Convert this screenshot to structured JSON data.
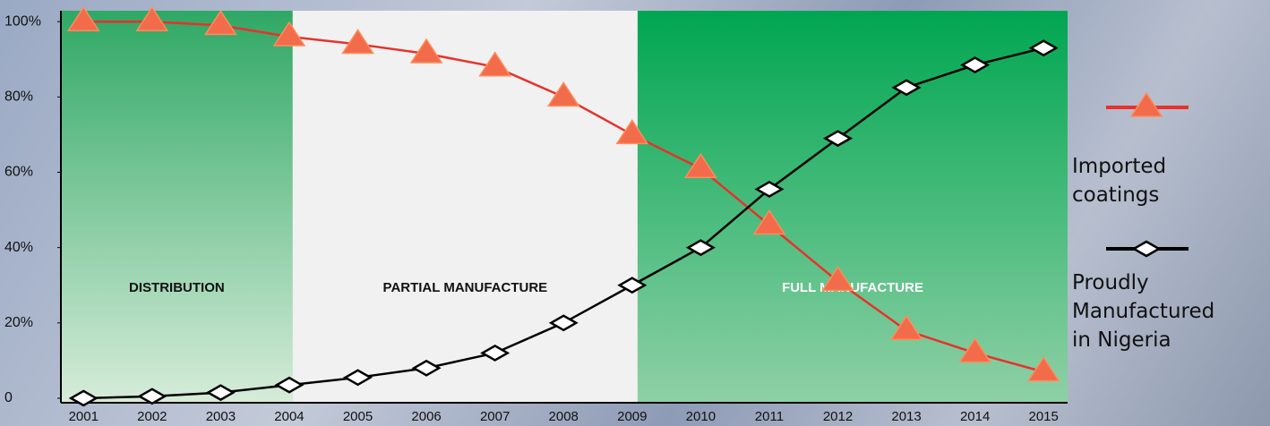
{
  "chart_data": {
    "type": "line",
    "x": [
      2001,
      2002,
      2003,
      2004,
      2005,
      2006,
      2007,
      2008,
      2009,
      2010,
      2011,
      2012,
      2013,
      2014,
      2015
    ],
    "xticks": [
      2001,
      2002,
      2003,
      2004,
      2005,
      2006,
      2007,
      2008,
      2009,
      2010,
      2011,
      2012,
      2013,
      2014,
      2015
    ],
    "xlim": [
      2000.67,
      2015.35
    ],
    "ylim": [
      -1.2,
      102.9
    ],
    "yticks": [
      0,
      {
        "value": 20,
        "label": "20%"
      },
      {
        "value": 40,
        "label": "40%"
      },
      {
        "value": 60,
        "label": "60%"
      },
      {
        "value": 80,
        "label": "80%"
      },
      {
        "value": 100,
        "label": "100%"
      }
    ],
    "regions": [
      {
        "label": "DISTRIBUTION",
        "start": 2000.67,
        "end": 2004.05,
        "color": "#2fa865",
        "text_color": "#111111"
      },
      {
        "label": "PARTIAL MANUFACTURE",
        "start": 2004.05,
        "end": 2009.08,
        "color": "#f1f1f1",
        "text_color": "#111111"
      },
      {
        "label": "FULL MANUFACTURE",
        "start": 2009.08,
        "end": 2015.35,
        "color": "#00a651",
        "text_color": "#ffffff"
      }
    ],
    "series": [
      {
        "name": "Imported coatings",
        "color": "#e8312a",
        "marker": "triangle",
        "marker_color": "#f26b4a",
        "values": [
          100,
          100,
          99,
          96,
          94,
          91.5,
          88,
          80,
          70,
          61,
          46,
          31,
          18,
          12,
          7
        ]
      },
      {
        "name": "Proudly Manufactured in Nigeria",
        "color": "#000000",
        "marker": "diamond",
        "marker_color": "#ffffff",
        "values": [
          0,
          0.5,
          1.5,
          3.5,
          5.5,
          8,
          12,
          20,
          30,
          40,
          55.5,
          69,
          82.5,
          88.5,
          93
        ]
      }
    ]
  }
}
